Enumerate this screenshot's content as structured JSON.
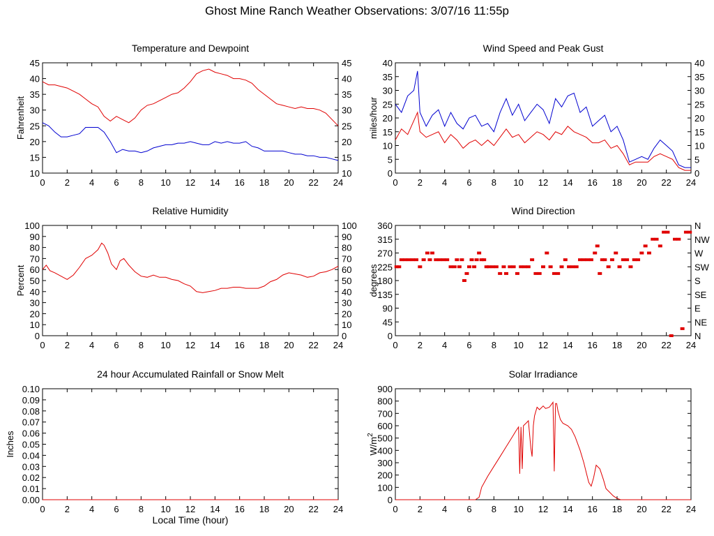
{
  "page": {
    "title": "Ghost Mine Ranch Weather Observations: 3/07/16 11:55p"
  },
  "colors": {
    "temperature": "#e00000",
    "dewpoint": "#0000d0",
    "red": "#e00000",
    "blue": "#0000d0",
    "frame": "#000000"
  },
  "chart_data": [
    {
      "id": "temp",
      "type": "line",
      "title": "Temperature and Dewpoint",
      "xlabel": "",
      "ylabel": "Fahrenheit",
      "xlim": [
        0,
        24
      ],
      "ylim": [
        10,
        45
      ],
      "x_ticks": [
        "0",
        "2",
        "4",
        "6",
        "8",
        "10",
        "12",
        "14",
        "16",
        "18",
        "20",
        "22",
        "24"
      ],
      "y_ticks": [
        "10",
        "15",
        "20",
        "25",
        "30",
        "35",
        "40",
        "45"
      ],
      "right_labels": [
        "10",
        "15",
        "20",
        "25",
        "30",
        "35",
        "40",
        "45"
      ],
      "series": [
        {
          "color": "red",
          "x": [
            0,
            0.5,
            1,
            1.5,
            2,
            2.5,
            3,
            3.5,
            4,
            4.5,
            5,
            5.5,
            6,
            6.5,
            7,
            7.5,
            8,
            8.5,
            9,
            9.5,
            10,
            10.5,
            11,
            11.5,
            12,
            12.5,
            13,
            13.5,
            14,
            14.5,
            15,
            15.5,
            16,
            16.5,
            17,
            17.5,
            18,
            18.5,
            19,
            19.5,
            20,
            20.5,
            21,
            21.5,
            22,
            22.5,
            23,
            23.5,
            24
          ],
          "values": [
            39,
            38,
            38,
            37.5,
            37,
            36,
            35,
            33.5,
            32,
            31,
            28,
            26.5,
            28,
            27,
            26,
            27.5,
            30,
            31.5,
            32,
            33,
            34,
            35,
            35.5,
            37,
            39,
            41.5,
            42.5,
            43,
            42,
            41.5,
            41,
            40,
            40,
            39.5,
            38.5,
            36.5,
            35,
            33.5,
            32,
            31.5,
            31,
            30.5,
            31,
            30.5,
            30.5,
            30,
            29,
            27,
            25
          ]
        },
        {
          "color": "blue",
          "x": [
            0,
            0.5,
            1,
            1.5,
            2,
            2.5,
            3,
            3.5,
            4,
            4.5,
            5,
            5.5,
            6,
            6.5,
            7,
            7.5,
            8,
            8.5,
            9,
            9.5,
            10,
            10.5,
            11,
            11.5,
            12,
            12.5,
            13,
            13.5,
            14,
            14.5,
            15,
            15.5,
            16,
            16.5,
            17,
            17.5,
            18,
            18.5,
            19,
            19.5,
            20,
            20.5,
            21,
            21.5,
            22,
            22.5,
            23,
            23.5,
            24
          ],
          "values": [
            26,
            25,
            23,
            21.5,
            21.5,
            22,
            22.5,
            24.5,
            24.5,
            24.5,
            23,
            20,
            16.5,
            17.5,
            17,
            17,
            16.5,
            17,
            18,
            18.5,
            19,
            19,
            19.5,
            19.5,
            20,
            19.5,
            19,
            19,
            20,
            19.5,
            20,
            19.5,
            19.5,
            20,
            18.5,
            18,
            17,
            17,
            17,
            17,
            16.5,
            16,
            16,
            15.5,
            15.5,
            15,
            15,
            14.5,
            14
          ]
        }
      ]
    },
    {
      "id": "wind",
      "type": "line",
      "title": "Wind Speed and Peak Gust",
      "xlabel": "",
      "ylabel": "miles/hour",
      "xlim": [
        0,
        24
      ],
      "ylim": [
        0,
        40
      ],
      "x_ticks": [
        "0",
        "2",
        "4",
        "6",
        "8",
        "10",
        "12",
        "14",
        "16",
        "18",
        "20",
        "22",
        "24"
      ],
      "y_ticks": [
        "0",
        "5",
        "10",
        "15",
        "20",
        "25",
        "30",
        "35",
        "40"
      ],
      "right_labels": [
        "0",
        "5",
        "10",
        "15",
        "20",
        "25",
        "30",
        "35",
        "40"
      ],
      "series": [
        {
          "color": "blue",
          "x": [
            0,
            0.5,
            1,
            1.5,
            1.8,
            2,
            2.5,
            3,
            3.5,
            4,
            4.5,
            5,
            5.5,
            6,
            6.5,
            7,
            7.5,
            8,
            8.5,
            9,
            9.5,
            10,
            10.5,
            11,
            11.5,
            12,
            12.5,
            13,
            13.5,
            14,
            14.5,
            15,
            15.5,
            16,
            16.5,
            17,
            17.5,
            18,
            18.5,
            19,
            19.5,
            20,
            20.5,
            21,
            21.5,
            22,
            22.5,
            23,
            23.5,
            24
          ],
          "values": [
            25,
            22,
            28,
            30,
            37,
            22,
            17,
            21,
            23,
            17,
            22,
            18,
            16,
            20,
            21,
            17,
            18,
            15,
            22,
            27,
            21,
            25,
            19,
            22,
            25,
            23,
            18,
            27,
            24,
            28,
            29,
            22,
            24,
            17,
            19,
            21,
            15,
            17,
            12,
            4,
            5,
            6,
            5,
            9,
            12,
            10,
            8,
            3,
            2,
            2
          ]
        },
        {
          "color": "red",
          "x": [
            0,
            0.5,
            1,
            1.5,
            1.8,
            2,
            2.5,
            3,
            3.5,
            4,
            4.5,
            5,
            5.5,
            6,
            6.5,
            7,
            7.5,
            8,
            8.5,
            9,
            9.5,
            10,
            10.5,
            11,
            11.5,
            12,
            12.5,
            13,
            13.5,
            14,
            14.5,
            15,
            15.5,
            16,
            16.5,
            17,
            17.5,
            18,
            18.5,
            19,
            19.5,
            20,
            20.5,
            21,
            21.5,
            22,
            22.5,
            23,
            23.5,
            24
          ],
          "values": [
            12,
            16,
            14,
            19,
            22,
            15,
            13,
            14,
            15,
            11,
            14,
            12,
            9,
            11,
            12,
            10,
            12,
            10,
            13,
            16,
            13,
            14,
            11,
            13,
            15,
            14,
            12,
            15,
            14,
            17,
            15,
            14,
            13,
            11,
            11,
            12,
            9,
            10,
            7,
            3,
            4,
            4,
            4,
            6,
            7,
            6,
            5,
            2,
            1,
            1
          ]
        }
      ]
    },
    {
      "id": "rh",
      "type": "line",
      "title": "Relative Humidity",
      "xlabel": "",
      "ylabel": "Percent",
      "xlim": [
        0,
        24
      ],
      "ylim": [
        0,
        100
      ],
      "x_ticks": [
        "0",
        "2",
        "4",
        "6",
        "8",
        "10",
        "12",
        "14",
        "16",
        "18",
        "20",
        "22",
        "24"
      ],
      "y_ticks": [
        "0",
        "10",
        "20",
        "30",
        "40",
        "50",
        "60",
        "70",
        "80",
        "90",
        "100"
      ],
      "right_labels": [
        "0",
        "10",
        "20",
        "30",
        "40",
        "50",
        "60",
        "70",
        "80",
        "90",
        "100"
      ],
      "series": [
        {
          "color": "red",
          "x": [
            0,
            0.3,
            0.6,
            1,
            1.5,
            2,
            2.5,
            3,
            3.5,
            4,
            4.5,
            4.8,
            5,
            5.3,
            5.6,
            6,
            6.3,
            6.6,
            7,
            7.5,
            8,
            8.5,
            9,
            9.5,
            10,
            10.5,
            11,
            11.5,
            12,
            12.5,
            13,
            13.5,
            14,
            14.5,
            15,
            15.5,
            16,
            16.5,
            17,
            17.5,
            18,
            18.5,
            19,
            19.5,
            20,
            20.5,
            21,
            21.5,
            22,
            22.5,
            23,
            23.5,
            24
          ],
          "values": [
            60,
            64,
            59,
            57,
            54,
            51,
            55,
            62,
            70,
            73,
            78,
            84,
            82,
            75,
            65,
            60,
            68,
            70,
            64,
            58,
            54,
            53,
            55,
            53,
            53,
            51,
            50,
            47,
            45,
            40,
            39,
            40,
            41,
            43,
            43,
            44,
            44,
            43,
            43,
            43,
            45,
            49,
            51,
            55,
            57,
            56,
            55,
            53,
            54,
            57,
            58,
            60,
            63
          ]
        }
      ]
    },
    {
      "id": "dir",
      "type": "scatter",
      "title": "Wind Direction",
      "xlabel": "",
      "ylabel": "degrees",
      "xlim": [
        0,
        24
      ],
      "ylim": [
        0,
        360
      ],
      "x_ticks": [
        "0",
        "2",
        "4",
        "6",
        "8",
        "10",
        "12",
        "14",
        "16",
        "18",
        "20",
        "22",
        "24"
      ],
      "y_ticks": [
        "0",
        "45",
        "90",
        "135",
        "180",
        "225",
        "270",
        "315",
        "360"
      ],
      "right_labels": [
        "N",
        "NE",
        "E",
        "SE",
        "S",
        "SW",
        "W",
        "NW",
        "N"
      ],
      "series": [
        {
          "color": "red",
          "x": [
            0.1,
            0.3,
            0.5,
            0.8,
            1.1,
            1.4,
            1.7,
            2.0,
            2.3,
            2.6,
            2.8,
            3.0,
            3.3,
            3.6,
            3.9,
            4.2,
            4.5,
            4.8,
            5.0,
            5.2,
            5.4,
            5.6,
            5.8,
            6.0,
            6.2,
            6.4,
            6.6,
            6.8,
            7.0,
            7.2,
            7.4,
            7.6,
            7.9,
            8.2,
            8.5,
            8.8,
            9.0,
            9.3,
            9.6,
            9.9,
            10.2,
            10.5,
            10.8,
            11.1,
            11.4,
            11.7,
            12.0,
            12.3,
            12.6,
            12.9,
            13.2,
            13.5,
            13.8,
            14.1,
            14.4,
            14.7,
            15.0,
            15.3,
            15.6,
            15.9,
            16.2,
            16.4,
            16.6,
            16.8,
            17.0,
            17.3,
            17.6,
            17.9,
            18.2,
            18.5,
            18.8,
            19.1,
            19.4,
            19.7,
            20.0,
            20.3,
            20.6,
            20.9,
            21.2,
            21.5,
            21.8,
            22.1,
            22.4,
            22.7,
            23.0,
            23.3,
            23.6,
            23.9
          ],
          "values": [
            225,
            225,
            248,
            248,
            248,
            248,
            248,
            225,
            248,
            270,
            248,
            270,
            248,
            248,
            248,
            248,
            225,
            225,
            248,
            225,
            248,
            180,
            203,
            225,
            248,
            225,
            248,
            270,
            248,
            248,
            225,
            225,
            225,
            225,
            203,
            225,
            203,
            225,
            225,
            203,
            225,
            225,
            225,
            248,
            203,
            203,
            225,
            270,
            225,
            203,
            203,
            225,
            248,
            225,
            225,
            225,
            248,
            248,
            248,
            248,
            270,
            293,
            203,
            248,
            248,
            225,
            248,
            270,
            225,
            248,
            248,
            225,
            248,
            248,
            270,
            293,
            270,
            315,
            315,
            293,
            338,
            338,
            0,
            315,
            315,
            23,
            338,
            338
          ]
        }
      ]
    },
    {
      "id": "rain",
      "type": "line",
      "title": "24 hour Accumulated Rainfall or Snow Melt",
      "xlabel": "Local Time (hour)",
      "ylabel": "Inches",
      "xlim": [
        0,
        24
      ],
      "ylim": [
        0,
        0.1
      ],
      "x_ticks": [
        "0",
        "2",
        "4",
        "6",
        "8",
        "10",
        "12",
        "14",
        "16",
        "18",
        "20",
        "22",
        "24"
      ],
      "y_ticks": [
        "0.00",
        "0.01",
        "0.02",
        "0.03",
        "0.04",
        "0.05",
        "0.06",
        "0.07",
        "0.08",
        "0.09",
        "0.10"
      ],
      "right_labels": [],
      "series": [
        {
          "color": "red",
          "x": [
            0,
            24
          ],
          "values": [
            0,
            0
          ]
        }
      ]
    },
    {
      "id": "solar",
      "type": "line",
      "title": "Solar Irradiance",
      "xlabel": "",
      "ylabel": "W/m",
      "ylabel_sup": "2",
      "xlim": [
        0,
        24
      ],
      "ylim": [
        0,
        900
      ],
      "x_ticks": [
        "0",
        "2",
        "4",
        "6",
        "8",
        "10",
        "12",
        "14",
        "16",
        "18",
        "20",
        "22",
        "24"
      ],
      "y_ticks": [
        "0",
        "100",
        "200",
        "300",
        "400",
        "500",
        "600",
        "700",
        "800",
        "900"
      ],
      "right_labels": [],
      "series": [
        {
          "color": "red",
          "x": [
            0,
            6.5,
            6.8,
            7,
            7.5,
            8,
            8.5,
            9,
            9.5,
            9.8,
            10,
            10.1,
            10.2,
            10.3,
            10.4,
            10.6,
            10.8,
            11,
            11.1,
            11.2,
            11.3,
            11.5,
            11.7,
            12,
            12.2,
            12.5,
            12.8,
            12.9,
            13.0,
            13.1,
            13.2,
            13.4,
            13.6,
            14,
            14.3,
            14.6,
            15,
            15.3,
            15.5,
            15.7,
            15.9,
            16.1,
            16.3,
            16.6,
            16.9,
            17.1,
            17.4,
            17.7,
            18,
            18.3,
            24
          ],
          "values": [
            0,
            0,
            20,
            100,
            190,
            270,
            350,
            430,
            510,
            560,
            590,
            210,
            590,
            250,
            600,
            620,
            640,
            420,
            350,
            600,
            680,
            750,
            730,
            760,
            740,
            750,
            790,
            230,
            780,
            780,
            720,
            650,
            620,
            600,
            570,
            510,
            400,
            300,
            220,
            140,
            110,
            180,
            280,
            250,
            160,
            90,
            60,
            30,
            10,
            0,
            0
          ]
        }
      ]
    }
  ]
}
